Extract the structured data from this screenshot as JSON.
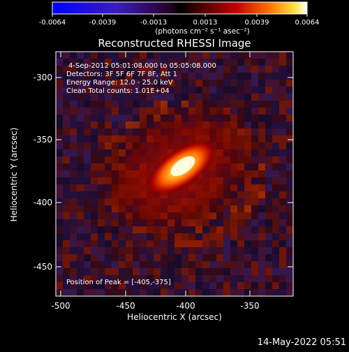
{
  "colorbar": {
    "ticks": [
      "-0.0064",
      "-0.0039",
      "-0.0013",
      "0.0013",
      "0.0039",
      "0.0064"
    ],
    "unit_label": "(photons cm⁻² s⁻¹ asec⁻²)"
  },
  "title": "Reconstructed RHESSI Image",
  "info": {
    "time_range": "4-Sep-2012 05:01:08.000 to 05:05:08.000",
    "detectors": "Detectors: 3F 5F 6F 7F 8F, Att 1",
    "energy": "Energy Range: 12.0 - 25.0 keV",
    "clean": "Clean    Total counts: 1.01E+04",
    "peak": "Position of Peak = [-405,-375]"
  },
  "axes": {
    "xlabel": "Heliocentric X (arcsec)",
    "ylabel": "Heliocentric Y (arcsec)",
    "xticks": [
      "-500",
      "-450",
      "-400",
      "-350"
    ],
    "yticks": [
      "-300",
      "-350",
      "-400",
      "-450"
    ]
  },
  "timestamp": "14-May-2022 05:51"
}
